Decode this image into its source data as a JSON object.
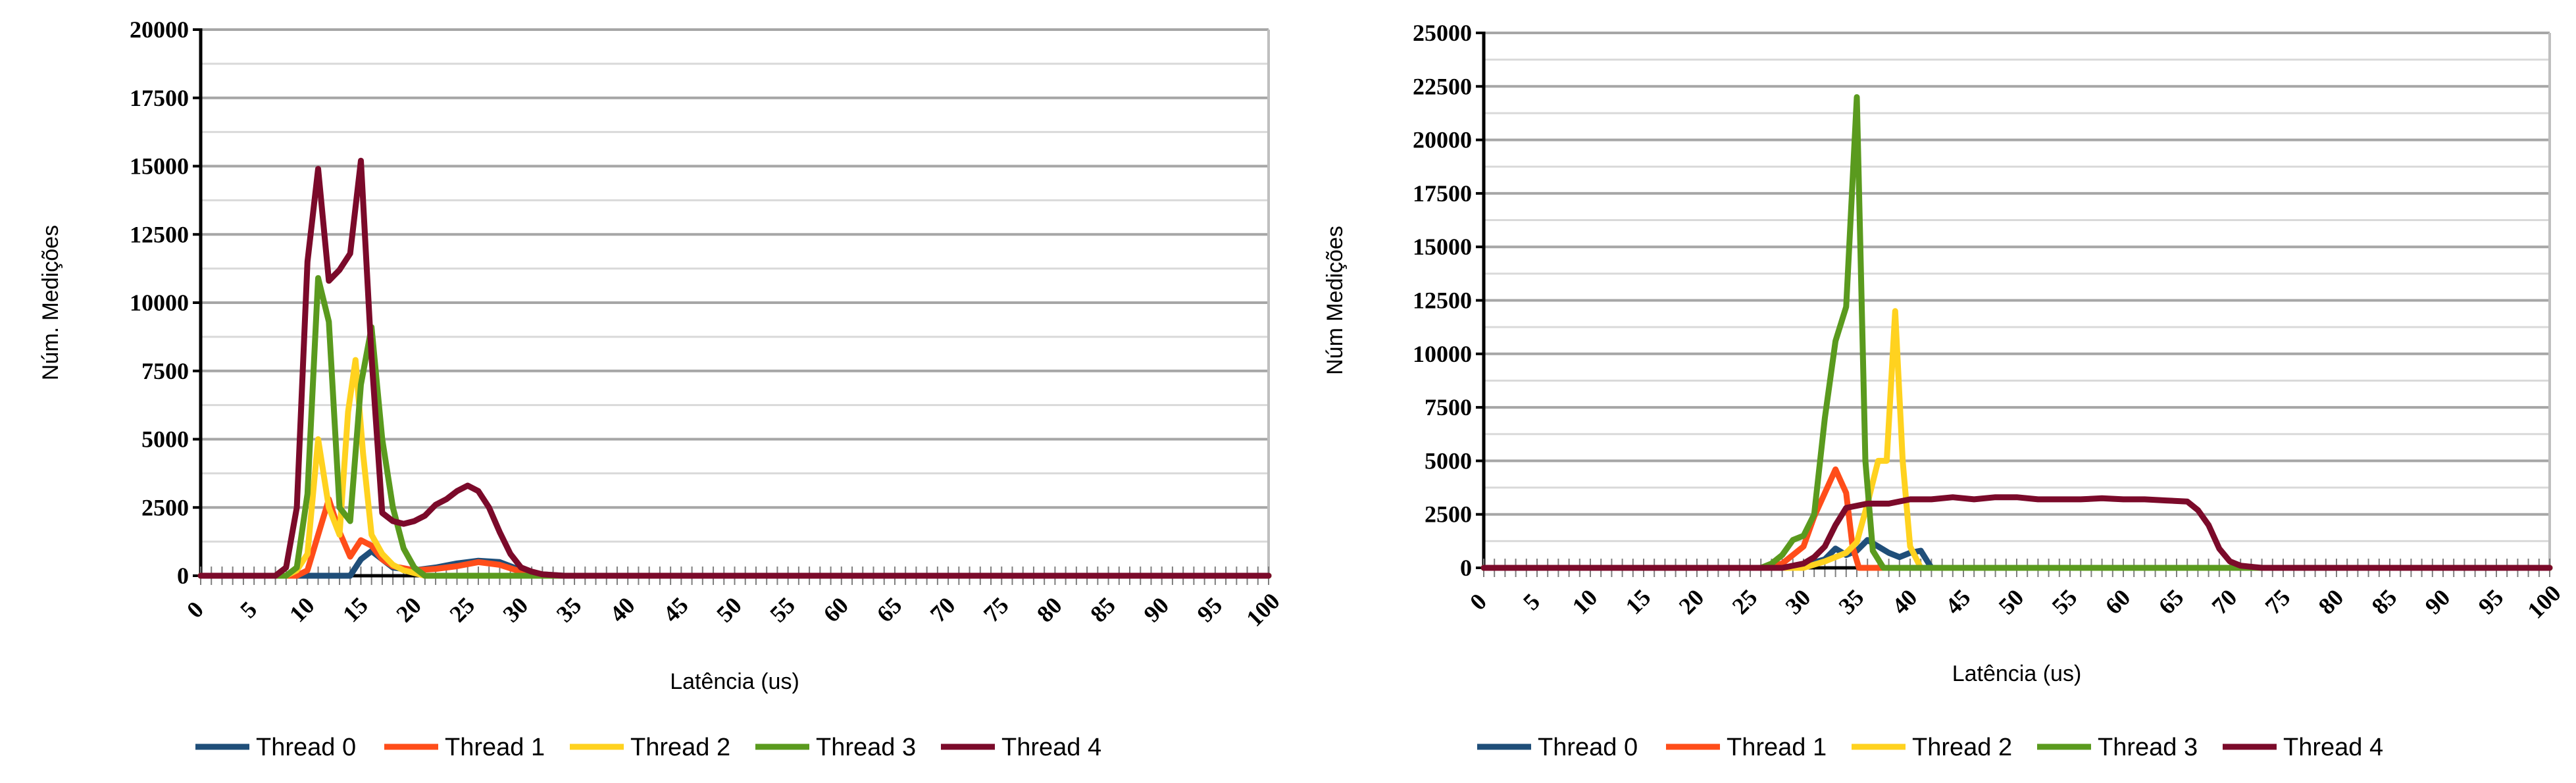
{
  "chart_data": [
    {
      "type": "line",
      "title": "",
      "xlabel": "Latência (us)",
      "ylabel": "Núm. Medições",
      "xlim": [
        0,
        100
      ],
      "ylim": [
        0,
        20000
      ],
      "xticks": [
        0,
        5,
        10,
        15,
        20,
        25,
        30,
        35,
        40,
        45,
        50,
        55,
        60,
        65,
        70,
        75,
        80,
        85,
        90,
        95,
        100
      ],
      "yticks": [
        0,
        2500,
        5000,
        7500,
        10000,
        12500,
        15000,
        17500,
        20000
      ],
      "grid": true,
      "legend": "bottom",
      "series": [
        {
          "name": "Thread 0",
          "color": "#1f4e79",
          "points": [
            [
              0,
              0
            ],
            [
              14,
              0
            ],
            [
              15,
              600
            ],
            [
              16,
              900
            ],
            [
              17,
              600
            ],
            [
              18,
              300
            ],
            [
              20,
              200
            ],
            [
              22,
              300
            ],
            [
              24,
              450
            ],
            [
              26,
              550
            ],
            [
              28,
              500
            ],
            [
              30,
              200
            ],
            [
              32,
              50
            ],
            [
              34,
              0
            ],
            [
              100,
              0
            ]
          ]
        },
        {
          "name": "Thread 1",
          "color": "#ff4d1a",
          "points": [
            [
              0,
              0
            ],
            [
              9,
              0
            ],
            [
              10,
              200
            ],
            [
              11,
              1500
            ],
            [
              12,
              2800
            ],
            [
              13,
              1600
            ],
            [
              14,
              700
            ],
            [
              15,
              1300
            ],
            [
              16,
              1100
            ],
            [
              17,
              600
            ],
            [
              18,
              350
            ],
            [
              20,
              200
            ],
            [
              22,
              250
            ],
            [
              24,
              350
            ],
            [
              26,
              500
            ],
            [
              28,
              400
            ],
            [
              30,
              150
            ],
            [
              32,
              0
            ],
            [
              100,
              0
            ]
          ]
        },
        {
          "name": "Thread 2",
          "color": "#ffd21f",
          "points": [
            [
              0,
              0
            ],
            [
              8,
              0
            ],
            [
              9,
              200
            ],
            [
              10,
              800
            ],
            [
              11,
              5000
            ],
            [
              12,
              2500
            ],
            [
              13,
              1500
            ],
            [
              13.8,
              6000
            ],
            [
              14.5,
              7900
            ],
            [
              15.2,
              4500
            ],
            [
              16,
              1500
            ],
            [
              17,
              800
            ],
            [
              18,
              400
            ],
            [
              19,
              200
            ],
            [
              20,
              100
            ],
            [
              21,
              0
            ],
            [
              100,
              0
            ]
          ]
        },
        {
          "name": "Thread 3",
          "color": "#5a9a1e",
          "points": [
            [
              0,
              0
            ],
            [
              8,
              0
            ],
            [
              9,
              300
            ],
            [
              10,
              3000
            ],
            [
              11,
              10900
            ],
            [
              12,
              9300
            ],
            [
              13,
              2500
            ],
            [
              14,
              2000
            ],
            [
              15,
              7000
            ],
            [
              16,
              9100
            ],
            [
              17,
              5000
            ],
            [
              18,
              2500
            ],
            [
              19,
              1000
            ],
            [
              20,
              300
            ],
            [
              21,
              0
            ],
            [
              100,
              0
            ]
          ]
        },
        {
          "name": "Thread 4",
          "color": "#7b0a2a",
          "points": [
            [
              0,
              0
            ],
            [
              7,
              0
            ],
            [
              8,
              300
            ],
            [
              9,
              2500
            ],
            [
              10,
              11500
            ],
            [
              11,
              14900
            ],
            [
              12,
              10800
            ],
            [
              13,
              11200
            ],
            [
              14,
              11800
            ],
            [
              15,
              15200
            ],
            [
              16,
              8000
            ],
            [
              17,
              2300
            ],
            [
              18,
              2000
            ],
            [
              19,
              1900
            ],
            [
              20,
              2000
            ],
            [
              21,
              2200
            ],
            [
              22,
              2600
            ],
            [
              23,
              2800
            ],
            [
              24,
              3100
            ],
            [
              25,
              3300
            ],
            [
              26,
              3100
            ],
            [
              27,
              2500
            ],
            [
              28,
              1600
            ],
            [
              29,
              800
            ],
            [
              30,
              300
            ],
            [
              31,
              150
            ],
            [
              32,
              50
            ],
            [
              34,
              0
            ],
            [
              100,
              0
            ]
          ]
        }
      ]
    },
    {
      "type": "line",
      "title": "",
      "xlabel": "Latência (us)",
      "ylabel": "Núm Medições",
      "xlim": [
        0,
        100
      ],
      "ylim": [
        0,
        25000
      ],
      "xticks": [
        0,
        5,
        10,
        15,
        20,
        25,
        30,
        35,
        40,
        45,
        50,
        55,
        60,
        65,
        70,
        75,
        80,
        85,
        90,
        95,
        100
      ],
      "yticks": [
        0,
        2500,
        5000,
        7500,
        10000,
        12500,
        15000,
        17500,
        20000,
        22500,
        25000
      ],
      "grid": true,
      "legend": "bottom",
      "series": [
        {
          "name": "Thread 0",
          "color": "#1f4e79",
          "points": [
            [
              0,
              0
            ],
            [
              28,
              0
            ],
            [
              30,
              100
            ],
            [
              32,
              400
            ],
            [
              33,
              900
            ],
            [
              34,
              600
            ],
            [
              35,
              800
            ],
            [
              36,
              1300
            ],
            [
              37,
              1000
            ],
            [
              38,
              700
            ],
            [
              39,
              500
            ],
            [
              40,
              700
            ],
            [
              41,
              800
            ],
            [
              42,
              0
            ],
            [
              100,
              0
            ]
          ]
        },
        {
          "name": "Thread 1",
          "color": "#ff4d1a",
          "points": [
            [
              0,
              0
            ],
            [
              26,
              0
            ],
            [
              28,
              200
            ],
            [
              30,
              1000
            ],
            [
              31,
              2400
            ],
            [
              32,
              3500
            ],
            [
              33,
              4600
            ],
            [
              34,
              3500
            ],
            [
              34.6,
              1000
            ],
            [
              35.2,
              0
            ],
            [
              100,
              0
            ]
          ]
        },
        {
          "name": "Thread 2",
          "color": "#ffd21f",
          "points": [
            [
              0,
              0
            ],
            [
              30,
              0
            ],
            [
              32,
              300
            ],
            [
              34,
              700
            ],
            [
              35,
              1200
            ],
            [
              36,
              3000
            ],
            [
              37,
              5000
            ],
            [
              37.8,
              5000
            ],
            [
              38.6,
              12000
            ],
            [
              39.3,
              5000
            ],
            [
              40,
              1000
            ],
            [
              41,
              0
            ],
            [
              100,
              0
            ]
          ]
        },
        {
          "name": "Thread 3",
          "color": "#5a9a1e",
          "points": [
            [
              0,
              0
            ],
            [
              26,
              0
            ],
            [
              27,
              200
            ],
            [
              28,
              600
            ],
            [
              29,
              1300
            ],
            [
              30,
              1500
            ],
            [
              31,
              2500
            ],
            [
              32,
              7000
            ],
            [
              33,
              10600
            ],
            [
              34,
              12200
            ],
            [
              35,
              22000
            ],
            [
              35.8,
              5000
            ],
            [
              36.5,
              800
            ],
            [
              37.5,
              0
            ],
            [
              100,
              0
            ]
          ]
        },
        {
          "name": "Thread 4",
          "color": "#7b0a2a",
          "points": [
            [
              0,
              0
            ],
            [
              28,
              0
            ],
            [
              30,
              200
            ],
            [
              31,
              500
            ],
            [
              32,
              1000
            ],
            [
              33,
              2000
            ],
            [
              34,
              2800
            ],
            [
              36,
              3000
            ],
            [
              38,
              3000
            ],
            [
              40,
              3200
            ],
            [
              42,
              3200
            ],
            [
              44,
              3300
            ],
            [
              46,
              3200
            ],
            [
              48,
              3300
            ],
            [
              50,
              3300
            ],
            [
              52,
              3200
            ],
            [
              54,
              3200
            ],
            [
              56,
              3200
            ],
            [
              58,
              3250
            ],
            [
              60,
              3200
            ],
            [
              62,
              3200
            ],
            [
              64,
              3150
            ],
            [
              66,
              3100
            ],
            [
              67,
              2700
            ],
            [
              68,
              2000
            ],
            [
              69,
              900
            ],
            [
              70,
              300
            ],
            [
              71,
              100
            ],
            [
              73,
              0
            ],
            [
              100,
              0
            ]
          ]
        }
      ]
    }
  ]
}
